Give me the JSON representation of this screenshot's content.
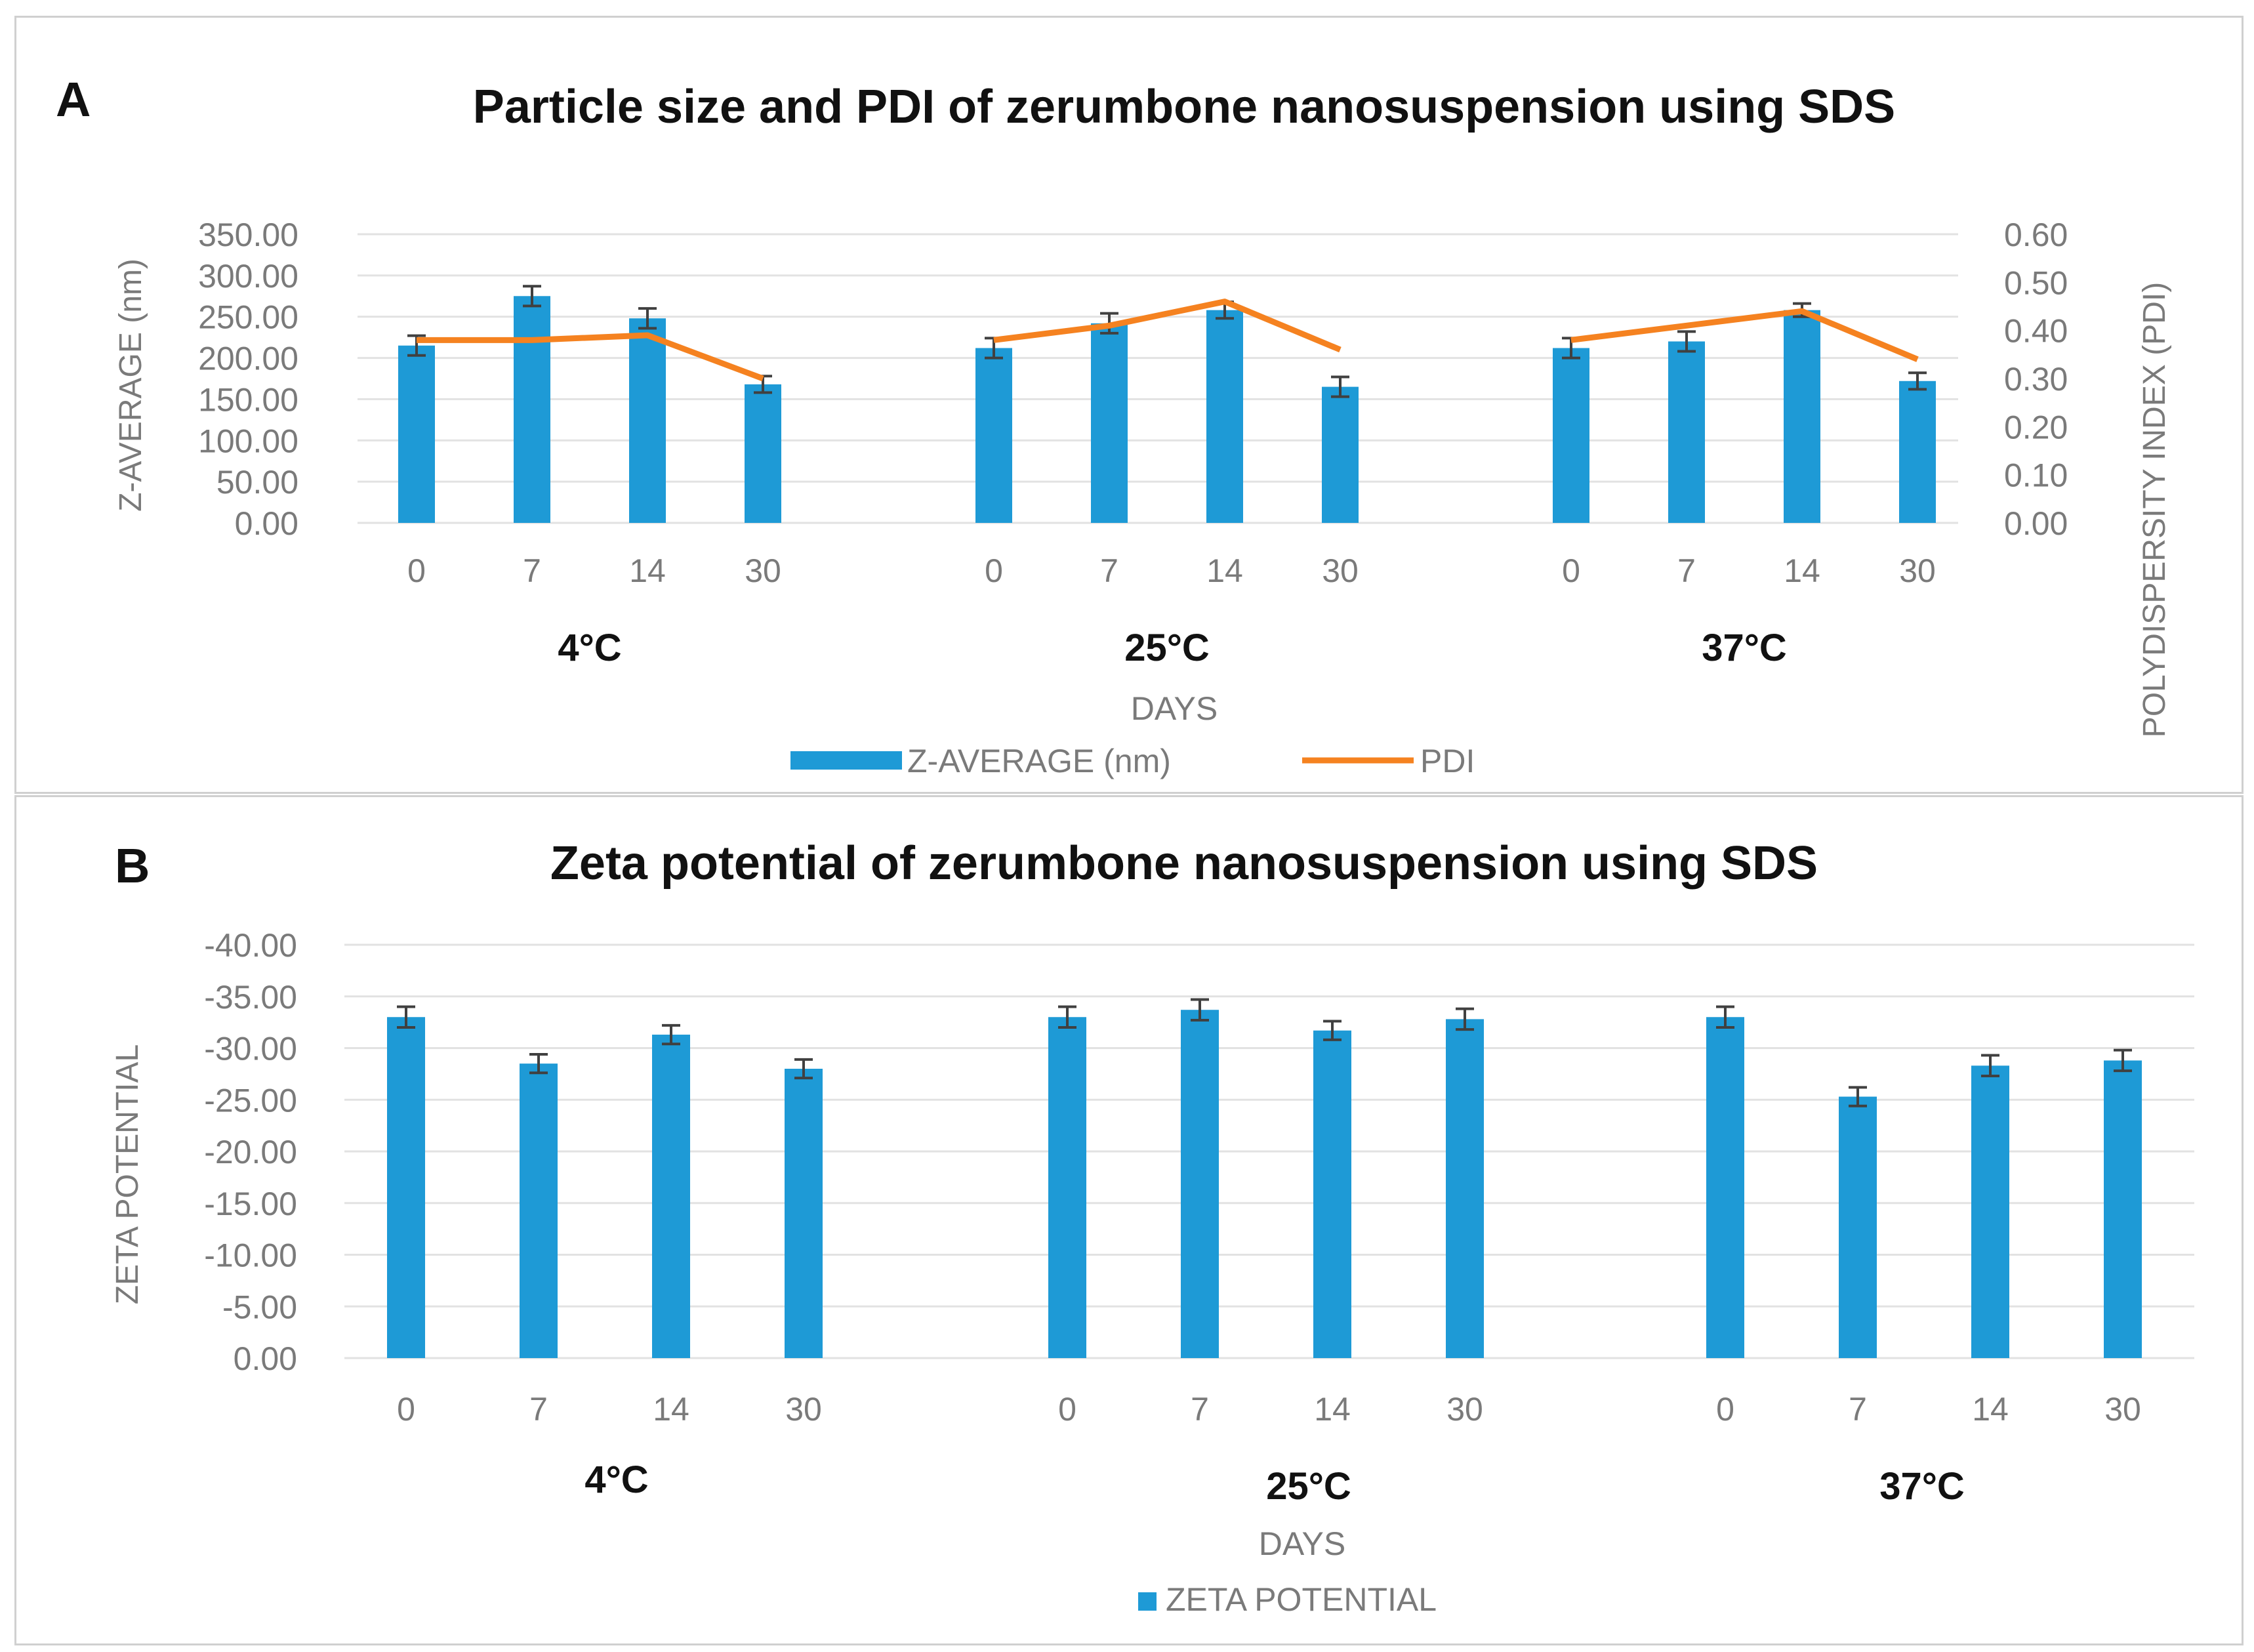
{
  "chart_data": [
    {
      "type": "bar",
      "panel_label": "A",
      "title": "Particle size and PDI of zerumbone nanosuspension using SDS",
      "xlabel": "DAYS",
      "ylabel": "Z-AVERAGE (nm)",
      "y2label": "POLYDISPERSITY INDEX (PDI)",
      "ylim": [
        0,
        350
      ],
      "y2lim": [
        0,
        0.6
      ],
      "yticks": [
        "0.00",
        "50.00",
        "100.00",
        "150.00",
        "200.00",
        "250.00",
        "300.00",
        "350.00"
      ],
      "y2ticks": [
        "0.00",
        "0.10",
        "0.20",
        "0.30",
        "0.40",
        "0.50",
        "0.60"
      ],
      "groups": [
        {
          "label": "4°C",
          "days": [
            "0",
            "7",
            "14",
            "30"
          ]
        },
        {
          "label": "25°C",
          "days": [
            "0",
            "7",
            "14",
            "30"
          ]
        },
        {
          "label": "37°C",
          "days": [
            "0",
            "7",
            "14",
            "30"
          ]
        }
      ],
      "series": [
        {
          "name": "Z-AVERAGE (nm)",
          "kind": "bar",
          "color": "#1e9ad6",
          "values": [
            215,
            275,
            248,
            168,
            212,
            242,
            258,
            165,
            212,
            220,
            258,
            172
          ],
          "errors": [
            12,
            12,
            12,
            10,
            12,
            12,
            10,
            12,
            12,
            12,
            8,
            10
          ]
        },
        {
          "name": "PDI",
          "kind": "line",
          "axis": "secondary",
          "color": "#f58220",
          "values": [
            0.38,
            0.38,
            0.39,
            0.3,
            0.38,
            0.41,
            0.46,
            0.36,
            0.38,
            0.41,
            0.44,
            0.34
          ]
        }
      ]
    },
    {
      "type": "bar",
      "panel_label": "B",
      "title": "Zeta potential of zerumbone nanosuspension using SDS",
      "xlabel": "DAYS",
      "ylabel": "ZETA POTENTIAL",
      "ylim": [
        0,
        -40
      ],
      "yticks": [
        "0.00",
        "-5.00",
        "-10.00",
        "-15.00",
        "-20.00",
        "-25.00",
        "-30.00",
        "-35.00",
        "-40.00"
      ],
      "groups": [
        {
          "label": "4°C",
          "days": [
            "0",
            "7",
            "14",
            "30"
          ]
        },
        {
          "label": "25°C",
          "days": [
            "0",
            "7",
            "14",
            "30"
          ]
        },
        {
          "label": "37°C",
          "days": [
            "0",
            "7",
            "14",
            "30"
          ]
        }
      ],
      "series": [
        {
          "name": "ZETA POTENTIAL",
          "kind": "bar",
          "color": "#1e9ad6",
          "values": [
            -33.0,
            -28.5,
            -31.3,
            -28.0,
            -33.0,
            -33.7,
            -31.7,
            -32.8,
            -33.0,
            -25.3,
            -28.3,
            -28.8
          ],
          "errors": [
            1.0,
            0.9,
            0.9,
            0.9,
            1.0,
            1.0,
            0.9,
            1.0,
            1.0,
            0.9,
            1.0,
            1.0
          ]
        }
      ]
    }
  ]
}
